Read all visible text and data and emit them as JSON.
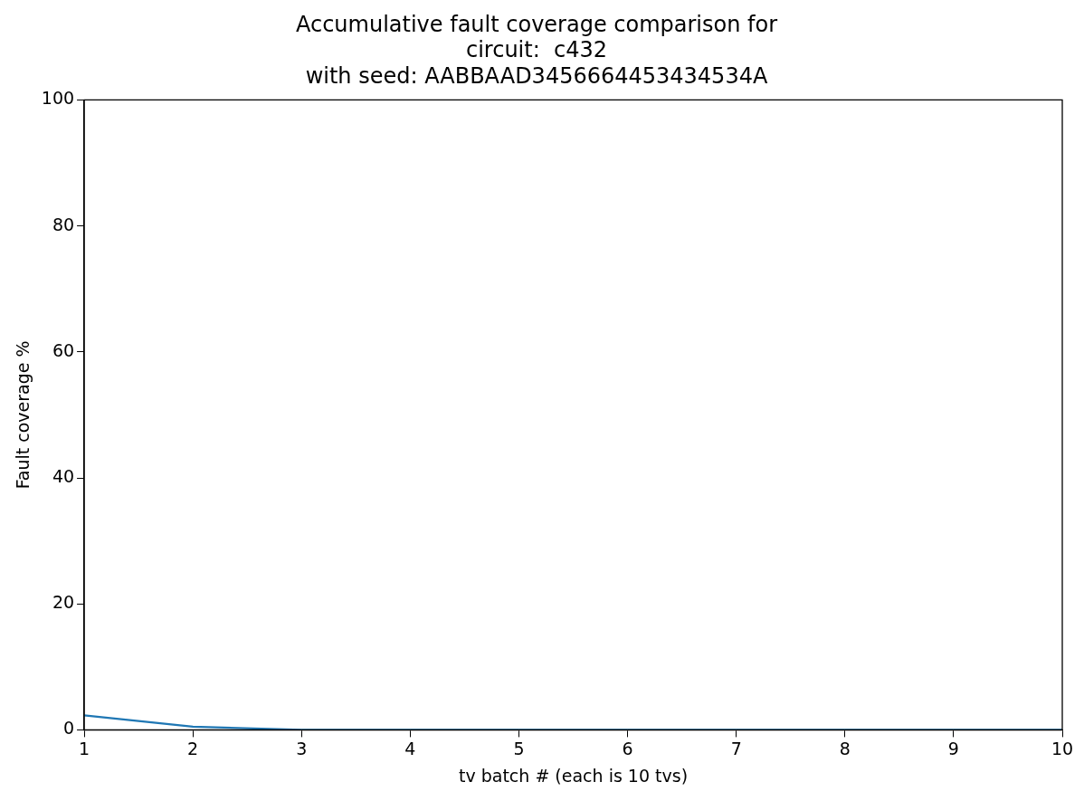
{
  "chart_data": {
    "type": "line",
    "title": "Accumulative fault coverage comparison for\ncircuit:  c432\nwith seed: AABBAAD3456664453434534A",
    "xlabel": "tv batch # (each is 10 tvs)",
    "ylabel": "Fault coverage %",
    "x": [
      1,
      2,
      3,
      4,
      5,
      6,
      7,
      8,
      9,
      10
    ],
    "series": [
      {
        "color": "#1f77b4",
        "values": [
          2.3,
          0.5,
          0,
          0,
          0,
          0,
          0,
          0,
          0,
          0
        ]
      }
    ],
    "xlim": [
      1,
      10
    ],
    "xticks": [
      1,
      2,
      3,
      4,
      5,
      6,
      7,
      8,
      9,
      10
    ],
    "ylim": [
      0,
      100
    ],
    "yticks": [
      0,
      20,
      40,
      60,
      80,
      100
    ],
    "grid": false,
    "legend": false,
    "marker": "none",
    "line_style": "solid"
  }
}
